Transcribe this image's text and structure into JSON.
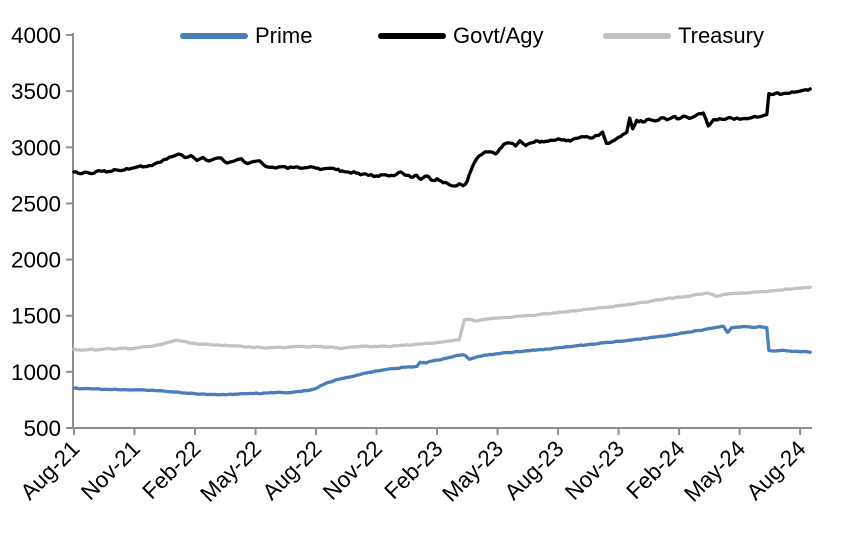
{
  "chart_data": {
    "type": "line",
    "title": "",
    "x_unit": "months since Aug-2021, 3-month tick spacing",
    "x_axis": {
      "tick_labels": [
        "Aug-21",
        "Nov-21",
        "Feb-22",
        "May-22",
        "Aug-22",
        "Nov-22",
        "Feb-23",
        "May-23",
        "Aug-23",
        "Nov-23",
        "Feb-24",
        "May-24",
        "Aug-24"
      ],
      "months_per_tick": 3
    },
    "y_axis": {
      "min": 500,
      "max": 4000,
      "step": 500,
      "tick_labels": [
        "500",
        "1000",
        "1500",
        "2000",
        "2500",
        "3000",
        "3500",
        "4000"
      ]
    },
    "grid": false,
    "legend_position": "top",
    "legend": [
      {
        "name": "Prime",
        "color": "#4a7ebb"
      },
      {
        "name": "Govt/Agy",
        "color": "#000000"
      },
      {
        "name": "Treasury",
        "color": "#c2c2c2"
      }
    ],
    "series": [
      {
        "name": "Prime",
        "color": "#4a7ebb",
        "points": [
          [
            0,
            855
          ],
          [
            0.5,
            850
          ],
          [
            1,
            848
          ],
          [
            1.5,
            845
          ],
          [
            2,
            846
          ],
          [
            2.5,
            842
          ],
          [
            3,
            840
          ],
          [
            3.5,
            838
          ],
          [
            4,
            834
          ],
          [
            4.5,
            828
          ],
          [
            5,
            820
          ],
          [
            5.5,
            812
          ],
          [
            6,
            806
          ],
          [
            6.5,
            801
          ],
          [
            7,
            799
          ],
          [
            7.5,
            797
          ],
          [
            8,
            801
          ],
          [
            8.5,
            806
          ],
          [
            9,
            810
          ],
          [
            9.3,
            806
          ],
          [
            9.7,
            813
          ],
          [
            10,
            817
          ],
          [
            10.5,
            813
          ],
          [
            11,
            822
          ],
          [
            11.5,
            832
          ],
          [
            12,
            852
          ],
          [
            12.5,
            900
          ],
          [
            13,
            930
          ],
          [
            13.5,
            950
          ],
          [
            14,
            970
          ],
          [
            14.5,
            990
          ],
          [
            15,
            1008
          ],
          [
            15.5,
            1022
          ],
          [
            16,
            1032
          ],
          [
            16.5,
            1042
          ],
          [
            17,
            1048
          ],
          [
            17.15,
            1085
          ],
          [
            17.45,
            1078
          ],
          [
            17.7,
            1095
          ],
          [
            18,
            1105
          ],
          [
            18.3,
            1115
          ],
          [
            18.6,
            1128
          ],
          [
            18.9,
            1142
          ],
          [
            19.2,
            1152
          ],
          [
            19.4,
            1146
          ],
          [
            19.6,
            1112
          ],
          [
            19.9,
            1128
          ],
          [
            20.2,
            1140
          ],
          [
            20.5,
            1150
          ],
          [
            21,
            1162
          ],
          [
            21.5,
            1172
          ],
          [
            22,
            1180
          ],
          [
            22.5,
            1188
          ],
          [
            23,
            1196
          ],
          [
            23.5,
            1203
          ],
          [
            24,
            1213
          ],
          [
            24.5,
            1223
          ],
          [
            25,
            1233
          ],
          [
            25.5,
            1243
          ],
          [
            26,
            1252
          ],
          [
            26.5,
            1262
          ],
          [
            27,
            1272
          ],
          [
            27.5,
            1282
          ],
          [
            28,
            1292
          ],
          [
            28.5,
            1302
          ],
          [
            29,
            1313
          ],
          [
            29.5,
            1326
          ],
          [
            30,
            1340
          ],
          [
            30.5,
            1354
          ],
          [
            31,
            1368
          ],
          [
            31.5,
            1386
          ],
          [
            32,
            1400
          ],
          [
            32.2,
            1406
          ],
          [
            32.4,
            1352
          ],
          [
            32.6,
            1392
          ],
          [
            33,
            1398
          ],
          [
            33.3,
            1403
          ],
          [
            33.6,
            1396
          ],
          [
            34,
            1404
          ],
          [
            34.2,
            1398
          ],
          [
            34.35,
            1392
          ],
          [
            34.45,
            1190
          ],
          [
            34.8,
            1186
          ],
          [
            35.1,
            1193
          ],
          [
            35.4,
            1186
          ],
          [
            35.7,
            1182
          ],
          [
            36,
            1178
          ],
          [
            36.3,
            1181
          ],
          [
            36.5,
            1175
          ]
        ]
      },
      {
        "name": "Govt/Agy",
        "color": "#000000",
        "points": [
          [
            0,
            2780
          ],
          [
            0.3,
            2765
          ],
          [
            0.6,
            2778
          ],
          [
            1,
            2770
          ],
          [
            1.3,
            2790
          ],
          [
            1.6,
            2780
          ],
          [
            2,
            2802
          ],
          [
            2.3,
            2792
          ],
          [
            2.6,
            2810
          ],
          [
            3,
            2818
          ],
          [
            3.3,
            2835
          ],
          [
            3.6,
            2828
          ],
          [
            4,
            2852
          ],
          [
            4.3,
            2868
          ],
          [
            4.6,
            2895
          ],
          [
            5,
            2925
          ],
          [
            5.2,
            2940
          ],
          [
            5.5,
            2908
          ],
          [
            5.8,
            2928
          ],
          [
            6.1,
            2882
          ],
          [
            6.4,
            2910
          ],
          [
            6.7,
            2878
          ],
          [
            7,
            2900
          ],
          [
            7.3,
            2905
          ],
          [
            7.6,
            2860
          ],
          [
            8,
            2882
          ],
          [
            8.3,
            2898
          ],
          [
            8.6,
            2855
          ],
          [
            9,
            2875
          ],
          [
            9.2,
            2880
          ],
          [
            9.5,
            2830
          ],
          [
            10,
            2815
          ],
          [
            10.3,
            2828
          ],
          [
            10.6,
            2812
          ],
          [
            11,
            2824
          ],
          [
            11.3,
            2814
          ],
          [
            11.6,
            2820
          ],
          [
            12,
            2814
          ],
          [
            12.3,
            2806
          ],
          [
            12.6,
            2812
          ],
          [
            13,
            2800
          ],
          [
            13.3,
            2790
          ],
          [
            13.6,
            2780
          ],
          [
            14,
            2770
          ],
          [
            14.3,
            2760
          ],
          [
            14.6,
            2750
          ],
          [
            15,
            2746
          ],
          [
            15.3,
            2754
          ],
          [
            15.6,
            2744
          ],
          [
            16,
            2760
          ],
          [
            16.2,
            2780
          ],
          [
            16.5,
            2750
          ],
          [
            16.8,
            2734
          ],
          [
            17,
            2750
          ],
          [
            17.2,
            2714
          ],
          [
            17.5,
            2744
          ],
          [
            17.8,
            2704
          ],
          [
            18,
            2720
          ],
          [
            18.3,
            2684
          ],
          [
            18.6,
            2668
          ],
          [
            18.9,
            2655
          ],
          [
            19.1,
            2675
          ],
          [
            19.3,
            2658
          ],
          [
            19.5,
            2700
          ],
          [
            19.7,
            2800
          ],
          [
            19.9,
            2880
          ],
          [
            20.1,
            2925
          ],
          [
            20.3,
            2948
          ],
          [
            20.6,
            2960
          ],
          [
            20.9,
            2940
          ],
          [
            21.1,
            2985
          ],
          [
            21.3,
            3025
          ],
          [
            21.6,
            3038
          ],
          [
            21.9,
            3012
          ],
          [
            22.1,
            3058
          ],
          [
            22.4,
            3015
          ],
          [
            22.7,
            3040
          ],
          [
            23,
            3055
          ],
          [
            23.3,
            3048
          ],
          [
            23.6,
            3062
          ],
          [
            24,
            3075
          ],
          [
            24.3,
            3068
          ],
          [
            24.6,
            3055
          ],
          [
            25,
            3082
          ],
          [
            25.3,
            3092
          ],
          [
            25.6,
            3082
          ],
          [
            26,
            3105
          ],
          [
            26.2,
            3135
          ],
          [
            26.4,
            3035
          ],
          [
            26.7,
            3055
          ],
          [
            27,
            3090
          ],
          [
            27.2,
            3112
          ],
          [
            27.4,
            3132
          ],
          [
            27.55,
            3260
          ],
          [
            27.7,
            3165
          ],
          [
            27.9,
            3240
          ],
          [
            28.2,
            3225
          ],
          [
            28.5,
            3250
          ],
          [
            28.8,
            3235
          ],
          [
            29.1,
            3262
          ],
          [
            29.4,
            3245
          ],
          [
            29.7,
            3270
          ],
          [
            30,
            3255
          ],
          [
            30.3,
            3275
          ],
          [
            30.6,
            3262
          ],
          [
            30.9,
            3292
          ],
          [
            31.2,
            3305
          ],
          [
            31.45,
            3190
          ],
          [
            31.7,
            3245
          ],
          [
            32,
            3255
          ],
          [
            32.3,
            3250
          ],
          [
            32.6,
            3260
          ],
          [
            33,
            3250
          ],
          [
            33.3,
            3256
          ],
          [
            33.6,
            3264
          ],
          [
            34,
            3272
          ],
          [
            34.2,
            3284
          ],
          [
            34.35,
            3290
          ],
          [
            34.45,
            3478
          ],
          [
            34.7,
            3472
          ],
          [
            34.9,
            3484
          ],
          [
            35.1,
            3474
          ],
          [
            35.4,
            3480
          ],
          [
            35.7,
            3490
          ],
          [
            36,
            3500
          ],
          [
            36.3,
            3512
          ],
          [
            36.5,
            3520
          ]
        ]
      },
      {
        "name": "Treasury",
        "color": "#c2c2c2",
        "points": [
          [
            0,
            1200
          ],
          [
            0.4,
            1194
          ],
          [
            0.8,
            1202
          ],
          [
            1.2,
            1196
          ],
          [
            1.6,
            1206
          ],
          [
            2,
            1202
          ],
          [
            2.4,
            1210
          ],
          [
            2.8,
            1206
          ],
          [
            3.2,
            1216
          ],
          [
            3.6,
            1224
          ],
          [
            4,
            1234
          ],
          [
            4.4,
            1248
          ],
          [
            4.8,
            1266
          ],
          [
            5.1,
            1283
          ],
          [
            5.4,
            1272
          ],
          [
            5.7,
            1258
          ],
          [
            6,
            1252
          ],
          [
            6.4,
            1246
          ],
          [
            6.8,
            1242
          ],
          [
            7.2,
            1238
          ],
          [
            7.6,
            1234
          ],
          [
            8,
            1230
          ],
          [
            8.4,
            1224
          ],
          [
            8.8,
            1220
          ],
          [
            9.2,
            1218
          ],
          [
            9.6,
            1214
          ],
          [
            10,
            1220
          ],
          [
            10.4,
            1214
          ],
          [
            10.8,
            1222
          ],
          [
            11.2,
            1226
          ],
          [
            11.6,
            1222
          ],
          [
            12,
            1226
          ],
          [
            12.4,
            1218
          ],
          [
            12.8,
            1222
          ],
          [
            13.2,
            1206
          ],
          [
            13.6,
            1218
          ],
          [
            14,
            1224
          ],
          [
            14.4,
            1228
          ],
          [
            14.8,
            1224
          ],
          [
            15.2,
            1230
          ],
          [
            15.6,
            1224
          ],
          [
            16,
            1232
          ],
          [
            16.4,
            1236
          ],
          [
            16.8,
            1242
          ],
          [
            17.2,
            1248
          ],
          [
            17.6,
            1254
          ],
          [
            18,
            1260
          ],
          [
            18.4,
            1270
          ],
          [
            18.8,
            1278
          ],
          [
            19.1,
            1284
          ],
          [
            19.35,
            1462
          ],
          [
            19.6,
            1468
          ],
          [
            19.9,
            1452
          ],
          [
            20.2,
            1465
          ],
          [
            20.6,
            1472
          ],
          [
            21,
            1478
          ],
          [
            21.4,
            1484
          ],
          [
            21.8,
            1490
          ],
          [
            22.2,
            1496
          ],
          [
            22.6,
            1503
          ],
          [
            23,
            1510
          ],
          [
            23.4,
            1518
          ],
          [
            23.8,
            1525
          ],
          [
            24.2,
            1532
          ],
          [
            24.6,
            1540
          ],
          [
            25,
            1548
          ],
          [
            25.4,
            1556
          ],
          [
            25.8,
            1564
          ],
          [
            26.2,
            1572
          ],
          [
            26.6,
            1580
          ],
          [
            27,
            1588
          ],
          [
            27.4,
            1598
          ],
          [
            27.8,
            1608
          ],
          [
            28.2,
            1618
          ],
          [
            28.6,
            1630
          ],
          [
            29,
            1642
          ],
          [
            29.4,
            1652
          ],
          [
            29.8,
            1660
          ],
          [
            30.2,
            1668
          ],
          [
            30.6,
            1678
          ],
          [
            31,
            1690
          ],
          [
            31.4,
            1702
          ],
          [
            31.9,
            1672
          ],
          [
            32.2,
            1692
          ],
          [
            32.6,
            1696
          ],
          [
            33,
            1700
          ],
          [
            33.4,
            1704
          ],
          [
            33.8,
            1710
          ],
          [
            34.2,
            1716
          ],
          [
            34.6,
            1722
          ],
          [
            35,
            1728
          ],
          [
            35.4,
            1736
          ],
          [
            35.8,
            1744
          ],
          [
            36.2,
            1750
          ],
          [
            36.5,
            1755
          ]
        ]
      }
    ],
    "colors": {
      "axis": "#8e8e8e",
      "text": "#000000",
      "background": "#ffffff"
    }
  }
}
